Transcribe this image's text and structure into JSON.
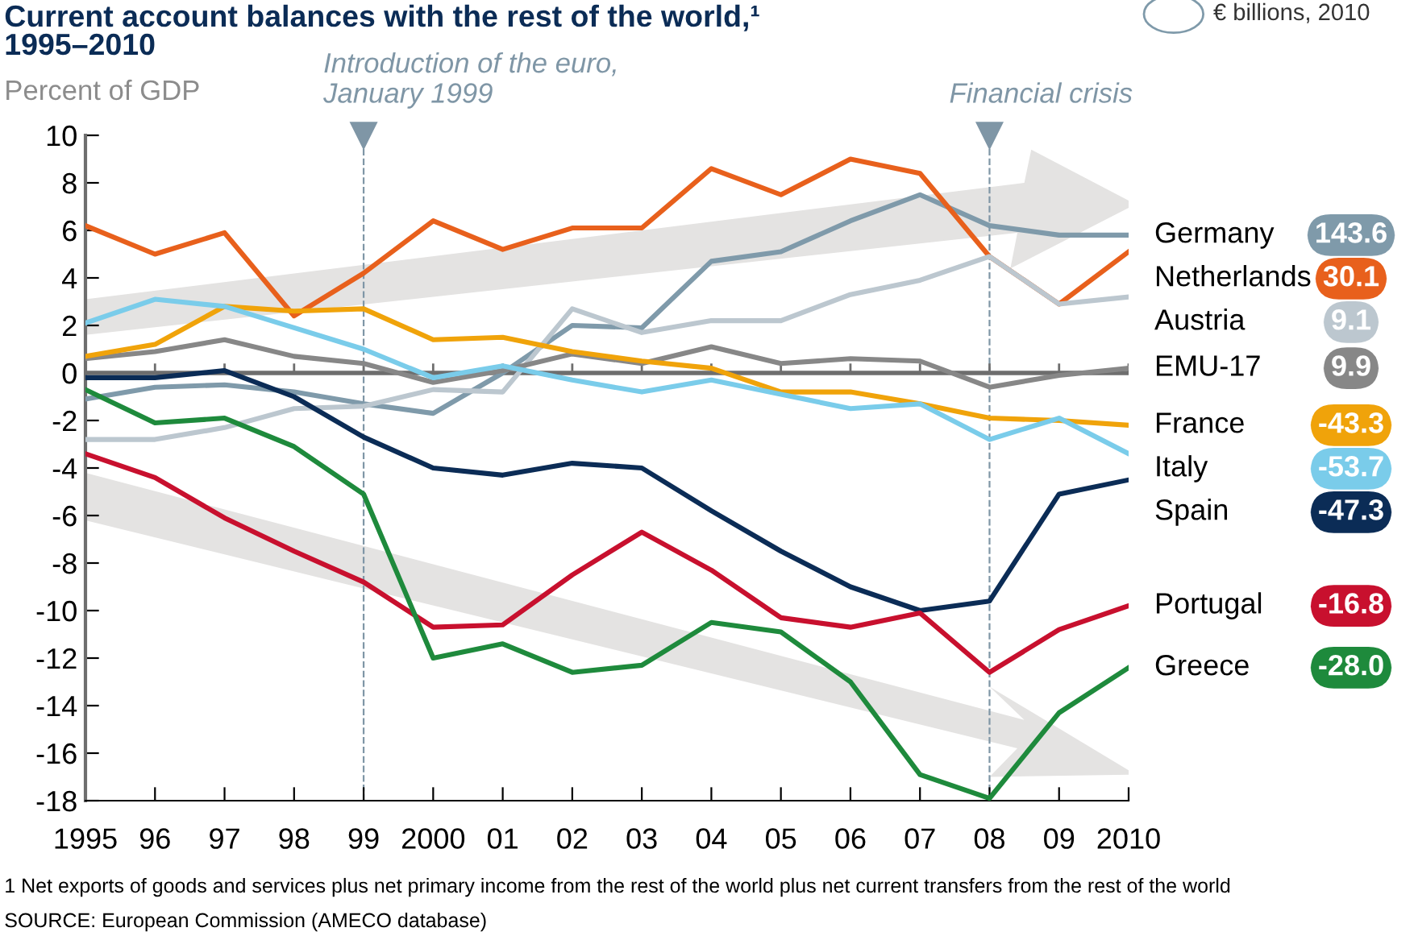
{
  "chart_data": {
    "type": "line",
    "title": "Current account balances with the rest of the world,¹\n1995–2010",
    "subtitle": "Percent of GDP",
    "x": [
      1995,
      1996,
      1997,
      1998,
      1999,
      2000,
      2001,
      2002,
      2003,
      2004,
      2005,
      2006,
      2007,
      2008,
      2009,
      2010
    ],
    "series": [
      {
        "name": "Germany",
        "color": "#7f9aaa",
        "values": [
          -1.1,
          -0.6,
          -0.5,
          -0.8,
          -1.3,
          -1.7,
          0.0,
          2.0,
          1.9,
          4.7,
          5.1,
          6.4,
          7.5,
          6.2,
          5.8,
          5.8
        ]
      },
      {
        "name": "Netherlands",
        "color": "#e8601c",
        "values": [
          6.2,
          5.0,
          5.9,
          2.4,
          4.2,
          6.4,
          5.2,
          6.1,
          6.1,
          8.6,
          7.5,
          9.0,
          8.4,
          4.9,
          2.9,
          5.1
        ]
      },
      {
        "name": "Austria",
        "color": "#bcc7cf",
        "values": [
          -2.8,
          -2.8,
          -2.3,
          -1.5,
          -1.4,
          -0.7,
          -0.8,
          2.7,
          1.7,
          2.2,
          2.2,
          3.3,
          3.9,
          4.9,
          2.9,
          3.2
        ]
      },
      {
        "name": "EMU-17",
        "color": "#878787",
        "values": [
          0.6,
          0.9,
          1.4,
          0.7,
          0.4,
          -0.4,
          0.1,
          0.8,
          0.4,
          1.1,
          0.4,
          0.6,
          0.5,
          -0.6,
          -0.1,
          0.2
        ]
      },
      {
        "name": "France",
        "color": "#f0a30a",
        "values": [
          0.7,
          1.2,
          2.8,
          2.6,
          2.7,
          1.4,
          1.5,
          0.9,
          0.5,
          0.2,
          -0.8,
          -0.8,
          -1.3,
          -1.9,
          -2.0,
          -2.2
        ]
      },
      {
        "name": "Italy",
        "color": "#7accea",
        "values": [
          2.1,
          3.1,
          2.8,
          1.9,
          1.0,
          -0.2,
          0.3,
          -0.3,
          -0.8,
          -0.3,
          -0.9,
          -1.5,
          -1.3,
          -2.8,
          -1.9,
          -3.4
        ]
      },
      {
        "name": "Spain",
        "color": "#0b2c56",
        "values": [
          -0.2,
          -0.2,
          0.1,
          -1.0,
          -2.7,
          -4.0,
          -4.3,
          -3.8,
          -4.0,
          -5.8,
          -7.5,
          -9.0,
          -10.0,
          -9.6,
          -5.1,
          -4.5
        ]
      },
      {
        "name": "Portugal",
        "color": "#c8102e",
        "values": [
          -3.4,
          -4.4,
          -6.1,
          -7.5,
          -8.8,
          -10.7,
          -10.6,
          -8.5,
          -6.7,
          -8.3,
          -10.3,
          -10.7,
          -10.1,
          -12.6,
          -10.8,
          -9.8
        ]
      },
      {
        "name": "Greece",
        "color": "#1e8a3c",
        "values": [
          -0.7,
          -2.1,
          -1.9,
          -3.1,
          -5.1,
          -12.0,
          -11.4,
          -12.6,
          -12.3,
          -10.5,
          -10.9,
          -13.0,
          -16.9,
          -17.9,
          -14.3,
          -12.4
        ]
      }
    ],
    "xlim": [
      1995,
      2010
    ],
    "xticks": [
      {
        "value": 1995,
        "label": "1995"
      },
      {
        "value": 1996,
        "label": "96"
      },
      {
        "value": 1997,
        "label": "97"
      },
      {
        "value": 1998,
        "label": "98"
      },
      {
        "value": 1999,
        "label": "99"
      },
      {
        "value": 2000,
        "label": "2000"
      },
      {
        "value": 2001,
        "label": "01"
      },
      {
        "value": 2002,
        "label": "02"
      },
      {
        "value": 2003,
        "label": "03"
      },
      {
        "value": 2004,
        "label": "04"
      },
      {
        "value": 2005,
        "label": "05"
      },
      {
        "value": 2006,
        "label": "06"
      },
      {
        "value": 2007,
        "label": "07"
      },
      {
        "value": 2008,
        "label": "08"
      },
      {
        "value": 2009,
        "label": "09"
      },
      {
        "value": 2010,
        "label": "2010"
      }
    ],
    "ylim": [
      -18,
      10
    ],
    "yticks": [
      -18,
      -16,
      -14,
      -12,
      -10,
      -8,
      -6,
      -4,
      -2,
      0,
      2,
      4,
      6,
      8,
      10
    ],
    "ref_lines": [
      {
        "axis": "x",
        "value": 1999,
        "label": "Introduction of the euro,\nJanuary 1999",
        "color": "#7f96a6",
        "line_style": "dashed"
      },
      {
        "axis": "x",
        "value": 2008,
        "label": "Financial crisis",
        "color": "#7f96a6",
        "line_style": "dashed"
      },
      {
        "axis": "y",
        "value": 0,
        "color": "#6e6e6e",
        "line_style": "solid"
      }
    ],
    "annotations": [
      "€ billions, 2010",
      "143.6",
      "30.1",
      "9.1",
      "9.9",
      "-43.3",
      "-53.7",
      "-47.3",
      "-16.8",
      "-28.0",
      "1 Net exports of goods and services plus net primary income from the rest of the world plus net current transfers from the rest of the world",
      "SOURCE: European Commission (AMECO database)"
    ],
    "grid": false,
    "legend": "right",
    "marker": "none",
    "line_style": "solid"
  }
}
